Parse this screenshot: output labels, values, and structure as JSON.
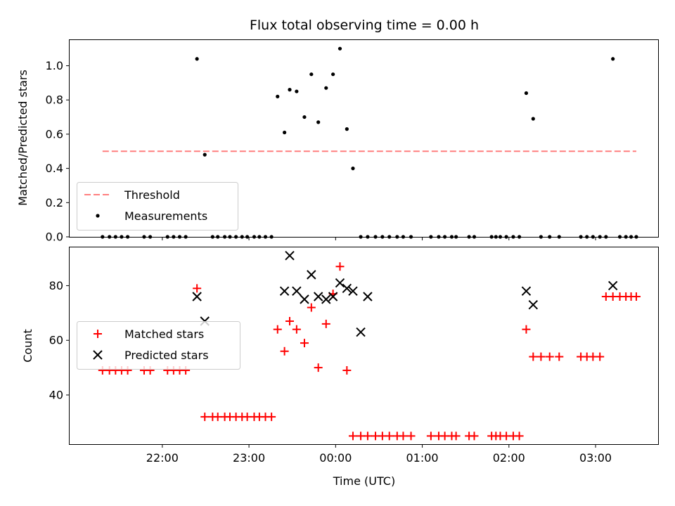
{
  "chart_data": [
    {
      "type": "scatter",
      "title": "Flux total observing time = 0.00 h",
      "xlabel": "",
      "ylabel": "Matched/Predicted stars",
      "x_unit": "hours after 21:00 UTC",
      "xlim": [
        20.93,
        27.73
      ],
      "ylim": [
        0.0,
        1.15
      ],
      "yticks": [
        0.0,
        0.2,
        0.4,
        0.6,
        0.8,
        1.0
      ],
      "yticklabels": [
        "0.0",
        "0.2",
        "0.4",
        "0.6",
        "0.8",
        "1.0"
      ],
      "legend_location": "lower-left",
      "threshold": {
        "name": "Threshold",
        "value": 0.5,
        "x": [
          21.31,
          27.47
        ],
        "color": "#ff7f7f"
      },
      "series": [
        {
          "name": "Measurements",
          "color": "#000000",
          "x": [
            21.31,
            21.39,
            21.46,
            21.53,
            21.6,
            21.79,
            21.86,
            22.06,
            22.13,
            22.2,
            22.27,
            22.4,
            22.49,
            22.58,
            22.64,
            22.72,
            22.78,
            22.85,
            22.92,
            22.98,
            23.06,
            23.12,
            23.19,
            23.26,
            23.33,
            23.41,
            23.47,
            23.55,
            23.64,
            23.72,
            23.8,
            23.89,
            23.97,
            24.05,
            24.13,
            24.2,
            24.29,
            24.37,
            24.46,
            24.54,
            24.62,
            24.71,
            24.78,
            24.87,
            25.1,
            25.19,
            25.26,
            25.34,
            25.39,
            25.54,
            25.6,
            25.8,
            25.85,
            25.9,
            25.97,
            26.05,
            26.12,
            26.2,
            26.28,
            26.37,
            26.47,
            26.58,
            26.83,
            26.9,
            26.97,
            27.05,
            27.12,
            27.2,
            27.28,
            27.35,
            27.41,
            27.47
          ],
          "y": [
            0,
            0,
            0,
            0,
            0,
            0,
            0,
            0,
            0,
            0,
            0,
            1.04,
            0.48,
            0,
            0,
            0,
            0,
            0,
            0,
            0,
            0,
            0,
            0,
            0,
            0.82,
            0.61,
            0.86,
            0.85,
            0.7,
            0.95,
            0.67,
            0.87,
            0.95,
            1.1,
            0.63,
            0.4,
            0,
            0,
            0,
            0,
            0,
            0,
            0,
            0,
            0,
            0,
            0,
            0,
            0,
            0,
            0,
            0,
            0,
            0,
            0,
            0,
            0,
            0.84,
            0.69,
            0,
            0,
            0,
            0,
            0,
            0,
            0,
            0,
            1.04,
            0,
            0,
            0,
            0
          ]
        }
      ]
    },
    {
      "type": "scatter",
      "title": "",
      "xlabel": "Time (UTC)",
      "ylabel": "Count",
      "x_unit": "hours after 21:00 UTC",
      "xlim": [
        20.93,
        27.73
      ],
      "ylim": [
        22,
        94
      ],
      "yticks": [
        40,
        60,
        80
      ],
      "yticklabels": [
        "40",
        "60",
        "80"
      ],
      "xticks": [
        22,
        23,
        24,
        25,
        26,
        27
      ],
      "xticklabels": [
        "22:00",
        "23:00",
        "00:00",
        "01:00",
        "02:00",
        "03:00"
      ],
      "legend_location": "center-left",
      "series": [
        {
          "name": "Matched stars",
          "marker": "plus",
          "color": "#ff0000",
          "x": [
            21.31,
            21.39,
            21.46,
            21.53,
            21.6,
            21.79,
            21.86,
            22.06,
            22.13,
            22.2,
            22.27,
            22.4,
            22.49,
            22.58,
            22.64,
            22.72,
            22.78,
            22.85,
            22.92,
            22.98,
            23.06,
            23.12,
            23.19,
            23.26,
            23.33,
            23.41,
            23.47,
            23.55,
            23.64,
            23.72,
            23.8,
            23.89,
            23.97,
            24.05,
            24.13,
            24.2,
            24.29,
            24.37,
            24.46,
            24.54,
            24.62,
            24.71,
            24.78,
            24.87,
            25.1,
            25.19,
            25.26,
            25.34,
            25.39,
            25.54,
            25.6,
            25.8,
            25.85,
            25.9,
            25.97,
            26.05,
            26.12,
            26.2,
            26.28,
            26.37,
            26.47,
            26.58,
            26.83,
            26.9,
            26.97,
            27.05,
            27.12,
            27.2,
            27.28,
            27.35,
            27.41,
            27.47
          ],
          "y": [
            49,
            49,
            49,
            49,
            49,
            49,
            49,
            49,
            49,
            49,
            49,
            79,
            32,
            32,
            32,
            32,
            32,
            32,
            32,
            32,
            32,
            32,
            32,
            32,
            64,
            56,
            67,
            64,
            59,
            72,
            50,
            66,
            77,
            87,
            49,
            25,
            25,
            25,
            25,
            25,
            25,
            25,
            25,
            25,
            25,
            25,
            25,
            25,
            25,
            25,
            25,
            25,
            25,
            25,
            25,
            25,
            25,
            64,
            54,
            54,
            54,
            54,
            54,
            54,
            54,
            54,
            76,
            76,
            76,
            76,
            76,
            76
          ]
        },
        {
          "name": "Predicted stars",
          "marker": "x",
          "color": "#000000",
          "x": [
            22.4,
            22.49,
            23.41,
            23.47,
            23.55,
            23.64,
            23.72,
            23.8,
            23.89,
            23.97,
            24.05,
            24.13,
            24.2,
            24.29,
            24.37,
            26.2,
            26.28,
            27.2
          ],
          "y": [
            76,
            67,
            78,
            91,
            78,
            75,
            84,
            76,
            75,
            76,
            81,
            79,
            78,
            63,
            76,
            78,
            73,
            80
          ]
        }
      ]
    }
  ]
}
